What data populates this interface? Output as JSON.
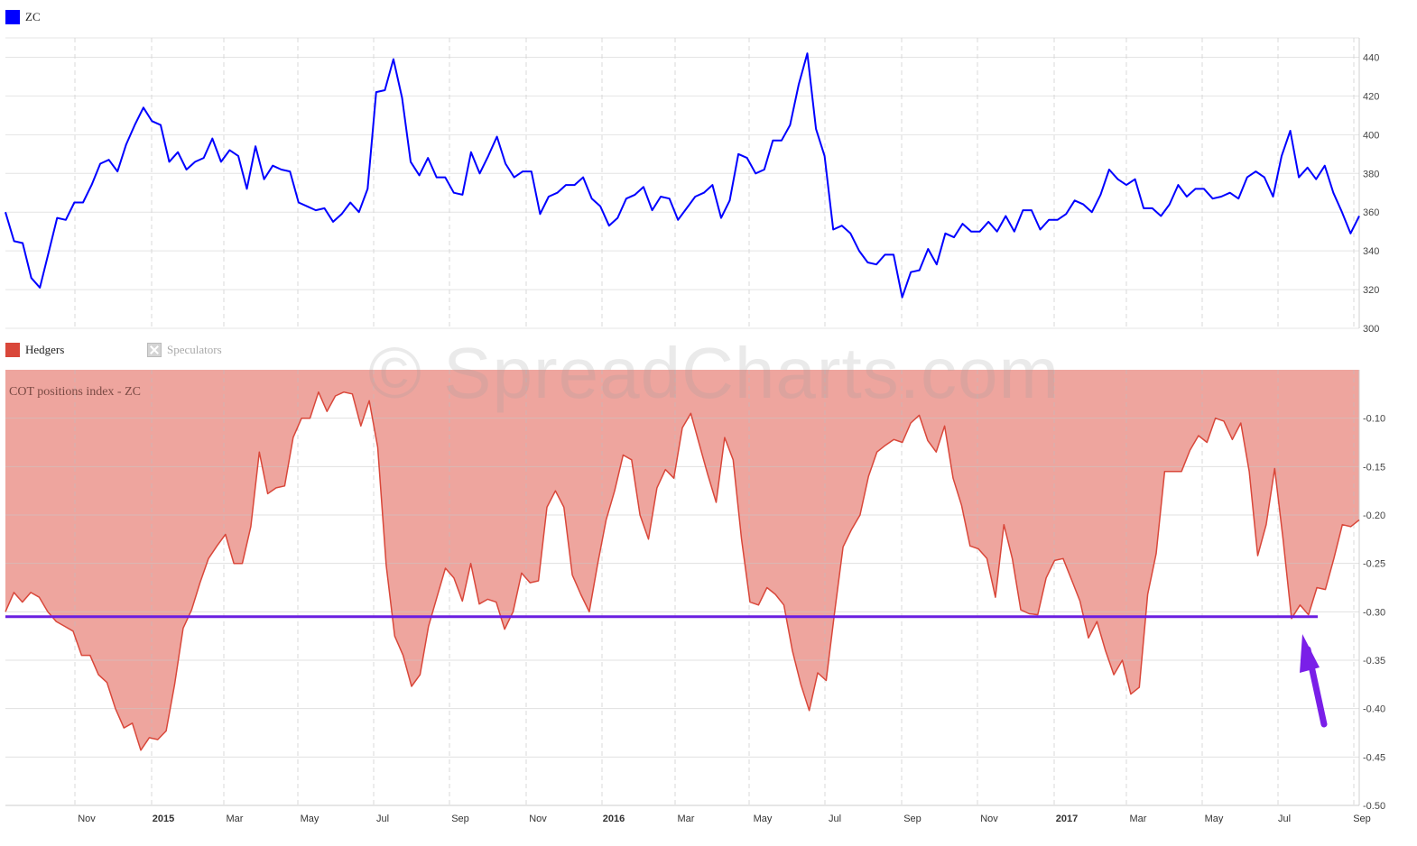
{
  "chart_data": [
    {
      "type": "line",
      "legend": [
        "ZC"
      ],
      "series": [
        {
          "name": "ZC",
          "color": "#0000ff",
          "values": [
            360,
            345,
            344,
            326,
            321,
            339,
            357,
            356,
            365,
            365,
            374,
            385,
            387,
            381,
            395,
            405,
            414,
            407,
            405,
            386,
            391,
            382,
            386,
            388,
            398,
            386,
            392,
            389,
            372,
            394,
            377,
            384,
            382,
            381,
            365,
            363,
            361,
            362,
            355,
            359,
            365,
            360,
            372,
            422,
            423,
            439,
            419,
            386,
            379,
            388,
            378,
            378,
            370,
            369,
            391,
            380,
            389,
            399,
            385,
            378,
            381,
            381,
            359,
            368,
            370,
            374,
            374,
            378,
            367,
            363,
            353,
            357,
            367,
            369,
            373,
            361,
            368,
            367,
            356,
            362,
            368,
            370,
            374,
            357,
            366,
            390,
            388,
            380,
            382,
            397,
            397,
            405,
            426,
            442,
            403,
            389,
            351,
            353,
            349,
            340,
            334,
            333,
            338,
            338,
            316,
            329,
            330,
            341,
            333,
            349,
            347,
            354,
            350,
            350,
            355,
            350,
            358,
            350,
            361,
            361,
            351,
            356,
            356,
            359,
            366,
            364,
            360,
            369,
            382,
            377,
            374,
            377,
            362,
            362,
            358,
            364,
            374,
            368,
            372,
            372,
            367,
            368,
            370,
            367,
            378,
            381,
            378,
            368,
            389,
            402,
            378,
            383,
            377,
            384,
            370,
            360,
            349,
            358
          ]
        }
      ],
      "ylim": [
        300,
        450
      ],
      "yticks": [
        300,
        320,
        340,
        360,
        380,
        400,
        420,
        440
      ]
    },
    {
      "type": "area",
      "title": "COT positions index - ZC",
      "legend": [
        "Hedgers",
        "Speculators"
      ],
      "series": [
        {
          "name": "Hedgers",
          "color": "#d9473a",
          "fill": "#eea59e",
          "values": [
            -0.3,
            -0.28,
            -0.29,
            -0.28,
            -0.285,
            -0.3,
            -0.31,
            -0.315,
            -0.32,
            -0.345,
            -0.345,
            -0.365,
            -0.373,
            -0.4,
            -0.42,
            -0.415,
            -0.443,
            -0.43,
            -0.432,
            -0.423,
            -0.375,
            -0.317,
            -0.298,
            -0.27,
            -0.245,
            -0.232,
            -0.22,
            -0.25,
            -0.25,
            -0.212,
            -0.135,
            -0.178,
            -0.172,
            -0.17,
            -0.12,
            -0.1,
            -0.1,
            -0.073,
            -0.093,
            -0.077,
            -0.073,
            -0.075,
            -0.108,
            -0.082,
            -0.13,
            -0.252,
            -0.325,
            -0.345,
            -0.377,
            -0.365,
            -0.315,
            -0.285,
            -0.255,
            -0.265,
            -0.289,
            -0.25,
            -0.292,
            -0.287,
            -0.29,
            -0.318,
            -0.3,
            -0.26,
            -0.27,
            -0.268,
            -0.192,
            -0.175,
            -0.192,
            -0.262,
            -0.282,
            -0.3,
            -0.25,
            -0.205,
            -0.175,
            -0.138,
            -0.143,
            -0.2,
            -0.225,
            -0.172,
            -0.153,
            -0.162,
            -0.11,
            -0.095,
            -0.127,
            -0.158,
            -0.187,
            -0.12,
            -0.143,
            -0.225,
            -0.29,
            -0.293,
            -0.275,
            -0.282,
            -0.293,
            -0.34,
            -0.375,
            -0.402,
            -0.363,
            -0.371,
            -0.3,
            -0.233,
            -0.215,
            -0.2,
            -0.16,
            -0.135,
            -0.128,
            -0.122,
            -0.125,
            -0.105,
            -0.097,
            -0.123,
            -0.135,
            -0.108,
            -0.162,
            -0.19,
            -0.232,
            -0.235,
            -0.245,
            -0.285,
            -0.21,
            -0.245,
            -0.298,
            -0.302,
            -0.303,
            -0.265,
            -0.247,
            -0.245,
            -0.267,
            -0.289,
            -0.327,
            -0.31,
            -0.34,
            -0.365,
            -0.35,
            -0.385,
            -0.378,
            -0.282,
            -0.24,
            -0.155,
            -0.155,
            -0.155,
            -0.133,
            -0.118,
            -0.125,
            -0.1,
            -0.103,
            -0.122,
            -0.105,
            -0.155,
            -0.242,
            -0.21,
            -0.152,
            -0.225,
            -0.307,
            -0.293,
            -0.303,
            -0.275,
            -0.277,
            -0.245,
            -0.21,
            -0.212,
            -0.205
          ]
        }
      ],
      "ylim": [
        -0.5,
        -0.05
      ],
      "yticks": [
        -0.1,
        -0.15,
        -0.2,
        -0.25,
        -0.3,
        -0.35,
        -0.4,
        -0.45,
        -0.5
      ],
      "reference_line": {
        "value": -0.305,
        "color": "#6a1fe0"
      },
      "annotation_arrow": {
        "color": "#7a1fe8"
      }
    }
  ],
  "x_axis": {
    "labels": [
      {
        "text": "Nov",
        "bold": false
      },
      {
        "text": "2015",
        "bold": true
      },
      {
        "text": "Mar",
        "bold": false
      },
      {
        "text": "May",
        "bold": false
      },
      {
        "text": "Jul",
        "bold": false
      },
      {
        "text": "Sep",
        "bold": false
      },
      {
        "text": "Nov",
        "bold": false
      },
      {
        "text": "2016",
        "bold": true
      },
      {
        "text": "Mar",
        "bold": false
      },
      {
        "text": "May",
        "bold": false
      },
      {
        "text": "Jul",
        "bold": false
      },
      {
        "text": "Sep",
        "bold": false
      },
      {
        "text": "Nov",
        "bold": false
      },
      {
        "text": "2017",
        "bold": true
      },
      {
        "text": "Mar",
        "bold": false
      },
      {
        "text": "May",
        "bold": false
      },
      {
        "text": "Jul",
        "bold": false
      },
      {
        "text": "Sep",
        "bold": false
      }
    ]
  },
  "watermark": "© SpreadCharts.com"
}
